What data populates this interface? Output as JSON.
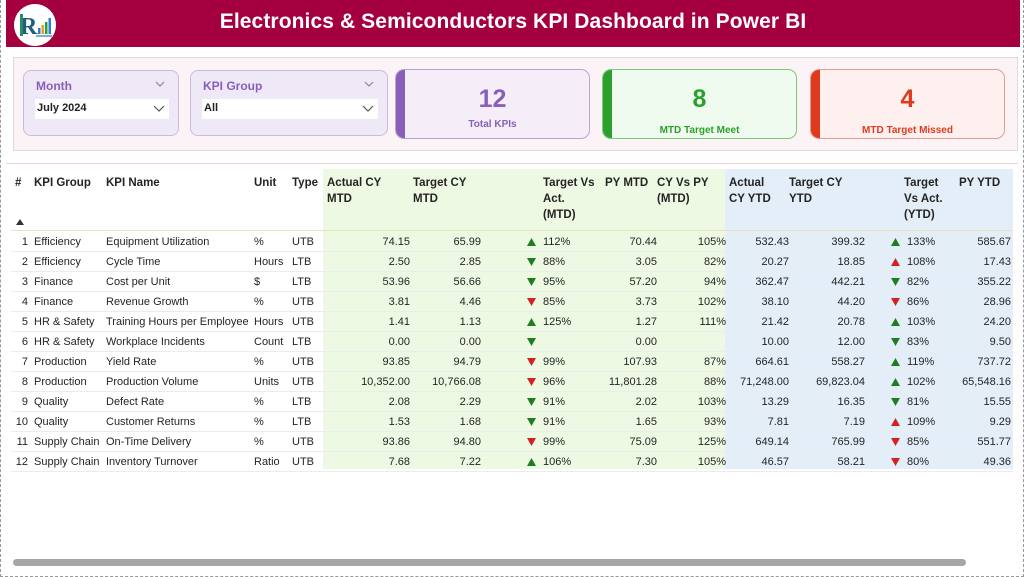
{
  "header": {
    "title": "Electronics & Semiconductors KPI Dashboard in Power BI",
    "logo_icon": "company-logo"
  },
  "filters": {
    "month": {
      "label": "Month",
      "value": "July 2024"
    },
    "kpi_group": {
      "label": "KPI Group",
      "value": "All"
    }
  },
  "cards": {
    "total": {
      "value": "12",
      "label": "Total KPIs",
      "color": "#8a5fb9"
    },
    "met": {
      "value": "8",
      "label": "MTD Target Meet",
      "color": "#2ca02c"
    },
    "missed": {
      "value": "4",
      "label": "MTD Target Missed",
      "color": "#e03a1e"
    }
  },
  "table": {
    "columns": {
      "num": "#",
      "group": "KPI Group",
      "name": "KPI Name",
      "unit": "Unit",
      "type": "Type",
      "actual_mtd": [
        "Actual CY",
        "MTD"
      ],
      "target_mtd": [
        "Target CY",
        "MTD"
      ],
      "tva_mtd": [
        "Target Vs",
        "Act.",
        "(MTD)"
      ],
      "py_mtd": [
        "PY MTD"
      ],
      "cvp_mtd": [
        "CY Vs PY",
        "(MTD)"
      ],
      "actual_ytd": [
        "Actual",
        "CY YTD"
      ],
      "target_ytd": [
        "Target CY",
        "YTD"
      ],
      "tva_ytd": [
        "Target",
        "Vs Act.",
        "(YTD)"
      ],
      "py_ytd": [
        "PY YTD"
      ]
    },
    "sort_icon": "sort-ascending-icon",
    "rows": [
      {
        "num": "1",
        "group": "Efficiency",
        "name": "Equipment Utilization",
        "unit": "%",
        "type": "UTB",
        "actual_mtd": "74.15",
        "target_mtd": "65.99",
        "mtd_icon": "up-green",
        "tva_mtd": "112%",
        "py_mtd": "70.44",
        "cvp_mtd": "105%",
        "actual_ytd": "532.43",
        "target_ytd": "399.32",
        "ytd_icon": "up-green",
        "tva_ytd": "133%",
        "py_ytd": "585.67"
      },
      {
        "num": "2",
        "group": "Efficiency",
        "name": "Cycle Time",
        "unit": "Hours",
        "type": "LTB",
        "actual_mtd": "2.50",
        "target_mtd": "2.85",
        "mtd_icon": "down-green",
        "tva_mtd": "88%",
        "py_mtd": "3.05",
        "cvp_mtd": "82%",
        "actual_ytd": "20.27",
        "target_ytd": "18.85",
        "ytd_icon": "up-red",
        "tva_ytd": "108%",
        "py_ytd": "17.43"
      },
      {
        "num": "3",
        "group": "Finance",
        "name": "Cost per Unit",
        "unit": "$",
        "type": "LTB",
        "actual_mtd": "53.96",
        "target_mtd": "56.66",
        "mtd_icon": "down-green",
        "tva_mtd": "95%",
        "py_mtd": "57.20",
        "cvp_mtd": "94%",
        "actual_ytd": "362.47",
        "target_ytd": "442.21",
        "ytd_icon": "down-green",
        "tva_ytd": "82%",
        "py_ytd": "355.22"
      },
      {
        "num": "4",
        "group": "Finance",
        "name": "Revenue Growth",
        "unit": "%",
        "type": "UTB",
        "actual_mtd": "3.81",
        "target_mtd": "4.46",
        "mtd_icon": "down-red",
        "tva_mtd": "85%",
        "py_mtd": "3.73",
        "cvp_mtd": "102%",
        "actual_ytd": "38.10",
        "target_ytd": "44.20",
        "ytd_icon": "down-red",
        "tva_ytd": "86%",
        "py_ytd": "28.96"
      },
      {
        "num": "5",
        "group": "HR & Safety",
        "name": "Training Hours per Employee",
        "unit": "Hours",
        "type": "UTB",
        "actual_mtd": "1.41",
        "target_mtd": "1.13",
        "mtd_icon": "up-green",
        "tva_mtd": "125%",
        "py_mtd": "1.27",
        "cvp_mtd": "111%",
        "actual_ytd": "21.42",
        "target_ytd": "20.78",
        "ytd_icon": "up-green",
        "tva_ytd": "103%",
        "py_ytd": "24.20"
      },
      {
        "num": "6",
        "group": "HR & Safety",
        "name": "Workplace Incidents",
        "unit": "Count",
        "type": "LTB",
        "actual_mtd": "0.00",
        "target_mtd": "0.00",
        "mtd_icon": "down-green",
        "tva_mtd": "",
        "py_mtd": "0.00",
        "cvp_mtd": "",
        "actual_ytd": "10.00",
        "target_ytd": "12.00",
        "ytd_icon": "down-green",
        "tva_ytd": "83%",
        "py_ytd": "9.50"
      },
      {
        "num": "7",
        "group": "Production",
        "name": "Yield Rate",
        "unit": "%",
        "type": "UTB",
        "actual_mtd": "93.85",
        "target_mtd": "94.79",
        "mtd_icon": "down-red",
        "tva_mtd": "99%",
        "py_mtd": "107.93",
        "cvp_mtd": "87%",
        "actual_ytd": "664.61",
        "target_ytd": "558.27",
        "ytd_icon": "up-green",
        "tva_ytd": "119%",
        "py_ytd": "737.72"
      },
      {
        "num": "8",
        "group": "Production",
        "name": "Production Volume",
        "unit": "Units",
        "type": "UTB",
        "actual_mtd": "10,352.00",
        "target_mtd": "10,766.08",
        "mtd_icon": "down-red",
        "tva_mtd": "96%",
        "py_mtd": "11,801.28",
        "cvp_mtd": "88%",
        "actual_ytd": "71,248.00",
        "target_ytd": "69,823.04",
        "ytd_icon": "up-green",
        "tva_ytd": "102%",
        "py_ytd": "65,548.16"
      },
      {
        "num": "9",
        "group": "Quality",
        "name": "Defect Rate",
        "unit": "%",
        "type": "LTB",
        "actual_mtd": "2.08",
        "target_mtd": "2.29",
        "mtd_icon": "down-green",
        "tva_mtd": "91%",
        "py_mtd": "2.02",
        "cvp_mtd": "103%",
        "actual_ytd": "13.29",
        "target_ytd": "16.35",
        "ytd_icon": "down-green",
        "tva_ytd": "81%",
        "py_ytd": "15.55"
      },
      {
        "num": "10",
        "group": "Quality",
        "name": "Customer Returns",
        "unit": "%",
        "type": "LTB",
        "actual_mtd": "1.53",
        "target_mtd": "1.68",
        "mtd_icon": "down-green",
        "tva_mtd": "91%",
        "py_mtd": "1.65",
        "cvp_mtd": "93%",
        "actual_ytd": "7.81",
        "target_ytd": "7.19",
        "ytd_icon": "up-red",
        "tva_ytd": "109%",
        "py_ytd": "9.29"
      },
      {
        "num": "11",
        "group": "Supply Chain",
        "name": "On-Time Delivery",
        "unit": "%",
        "type": "UTB",
        "actual_mtd": "93.86",
        "target_mtd": "94.80",
        "mtd_icon": "down-red",
        "tva_mtd": "99%",
        "py_mtd": "75.09",
        "cvp_mtd": "125%",
        "actual_ytd": "649.14",
        "target_ytd": "765.99",
        "ytd_icon": "down-red",
        "tva_ytd": "85%",
        "py_ytd": "551.77"
      },
      {
        "num": "12",
        "group": "Supply Chain",
        "name": "Inventory Turnover",
        "unit": "Ratio",
        "type": "UTB",
        "actual_mtd": "7.68",
        "target_mtd": "7.22",
        "mtd_icon": "up-green",
        "tva_mtd": "106%",
        "py_mtd": "7.30",
        "cvp_mtd": "105%",
        "actual_ytd": "46.57",
        "target_ytd": "58.21",
        "ytd_icon": "down-red",
        "tva_ytd": "80%",
        "py_ytd": "49.36"
      }
    ]
  },
  "colors": {
    "header_bg": "#a4003f",
    "icon_green": "#1e7d1e",
    "icon_red": "#d42020",
    "mtd_band": "#eef9e4",
    "ytd_band": "#e3eef9"
  }
}
